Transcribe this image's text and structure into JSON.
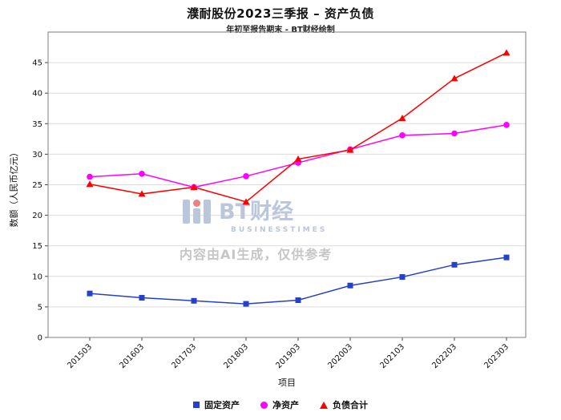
{
  "chart_data": {
    "type": "line",
    "title": "濮耐股份2023三季报 – 资产负债",
    "subtitle": "年初至报告期末 - BT财经绘制",
    "xlabel": "项目",
    "ylabel": "数额（人民币亿元）",
    "categories": [
      "201503",
      "201603",
      "201703",
      "201803",
      "201903",
      "202003",
      "202103",
      "202203",
      "202303"
    ],
    "series": [
      {
        "name": "固定资产",
        "marker": "square",
        "color": "#2540cc",
        "values": [
          7.2,
          6.5,
          6.0,
          5.5,
          6.1,
          8.5,
          9.9,
          11.9,
          13.1
        ]
      },
      {
        "name": "净资产",
        "marker": "circle",
        "color": "#ff00ff",
        "values": [
          26.3,
          26.8,
          24.6,
          26.4,
          28.6,
          30.8,
          33.1,
          33.4,
          34.8
        ]
      },
      {
        "name": "负债合计",
        "marker": "triangle",
        "color": "#ff0000",
        "values": [
          25.1,
          23.5,
          24.6,
          22.2,
          29.2,
          30.7,
          35.9,
          42.4,
          46.6
        ]
      }
    ],
    "yticks": [
      0,
      5,
      10,
      15,
      20,
      25,
      30,
      35,
      40,
      45
    ],
    "ylim": [
      0,
      50
    ],
    "grid": true,
    "legend_position": "bottom"
  },
  "watermark": {
    "brand": "BT财经",
    "brand_sub": "BUSINESSTIMES",
    "notice": "内容由AI生成，仅供参考"
  }
}
